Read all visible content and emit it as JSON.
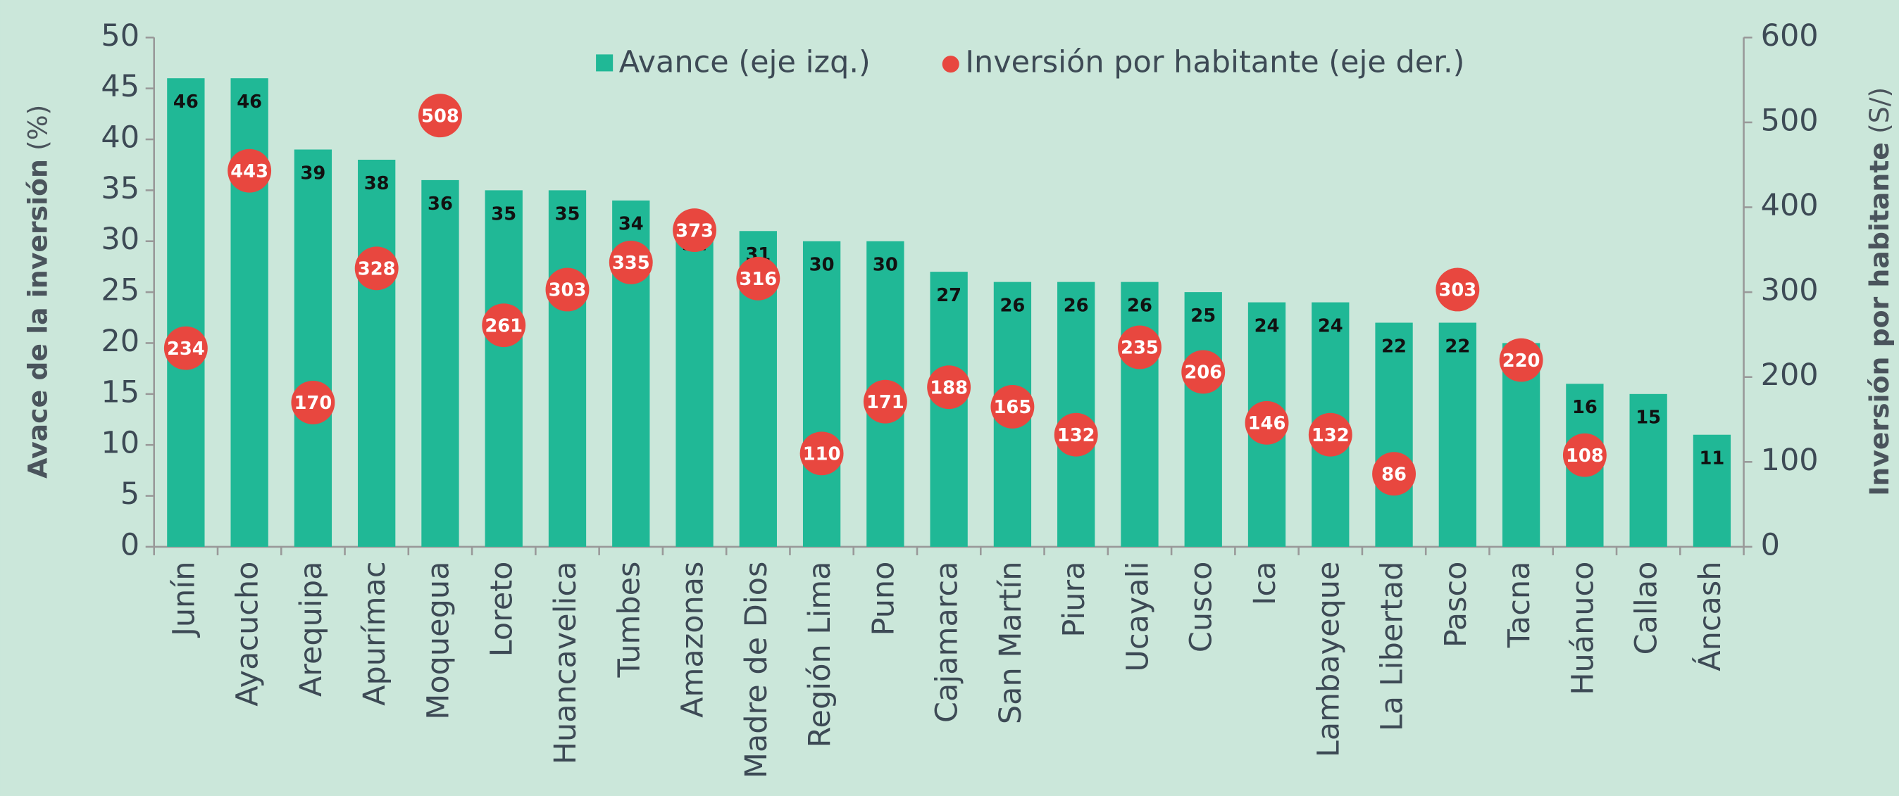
{
  "chart_data": {
    "type": "bar",
    "categories": [
      "Junín",
      "Ayacucho",
      "Arequipa",
      "Apurímac",
      "Moquegua",
      "Loreto",
      "Huancavelica",
      "Tumbes",
      "Amazonas",
      "Madre de Dios",
      "Región Lima",
      "Puno",
      "Cajamarca",
      "San Martín",
      "Piura",
      "Ucayali",
      "Cusco",
      "Ica",
      "Lambayeque",
      "La Libertad",
      "Pasco",
      "Tacna",
      "Huánuco",
      "Callao",
      "Áncash"
    ],
    "series": [
      {
        "name": "Avance (eje izq.)",
        "color": "#20b896",
        "type": "bar",
        "values": [
          46,
          46,
          39,
          38,
          36,
          35,
          35,
          34,
          32,
          31,
          30,
          30,
          27,
          26,
          26,
          26,
          25,
          24,
          24,
          22,
          22,
          20,
          16,
          15,
          11
        ]
      },
      {
        "name": "Inversión por habitante (eje der.)",
        "color": "#e8473f",
        "type": "scatter",
        "axis": "y2",
        "values": [
          234,
          443,
          170,
          328,
          508,
          261,
          303,
          335,
          373,
          316,
          110,
          171,
          188,
          165,
          132,
          235,
          206,
          146,
          132,
          86,
          303,
          220,
          108,
          null,
          null
        ]
      }
    ],
    "y_label": "Avace de la inversión",
    "y_unit": "(%)",
    "y2_label": "Inversión por habitante",
    "y2_unit": "(S/)",
    "ylim": [
      0,
      50
    ],
    "yticks": [
      0,
      5,
      10,
      15,
      20,
      25,
      30,
      35,
      40,
      45,
      50
    ],
    "y2lim": [
      0,
      600
    ],
    "y2ticks": [
      0,
      100,
      200,
      300,
      400,
      500,
      600
    ],
    "legend": "top",
    "grid": false
  }
}
